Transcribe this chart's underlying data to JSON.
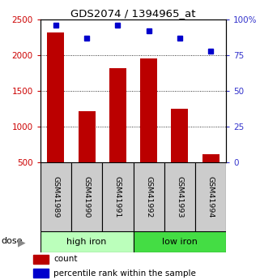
{
  "title": "GDS2074 / 1394965_at",
  "samples": [
    "GSM41989",
    "GSM41990",
    "GSM41991",
    "GSM41992",
    "GSM41993",
    "GSM41994"
  ],
  "counts": [
    2320,
    1220,
    1820,
    1960,
    1250,
    620
  ],
  "percentiles": [
    96,
    87,
    96,
    92,
    87,
    78
  ],
  "bar_color": "#bb0000",
  "dot_color": "#0000cc",
  "left_axis_color": "#cc0000",
  "right_axis_color": "#3333cc",
  "ylim_left": [
    500,
    2500
  ],
  "ylim_right": [
    0,
    100
  ],
  "yticks_left": [
    500,
    1000,
    1500,
    2000,
    2500
  ],
  "ytick_labels_left": [
    "500",
    "1000",
    "1500",
    "2000",
    "2500"
  ],
  "yticks_right": [
    0,
    25,
    50,
    75,
    100
  ],
  "ytick_labels_right": [
    "0",
    "25",
    "50",
    "75",
    "100%"
  ],
  "group_colors_high": "#bbffbb",
  "group_colors_low": "#44dd44",
  "legend_count_label": "count",
  "legend_pct_label": "percentile rank within the sample",
  "bar_bottom": 500,
  "sample_box_color": "#cccccc",
  "bg_color": "white"
}
